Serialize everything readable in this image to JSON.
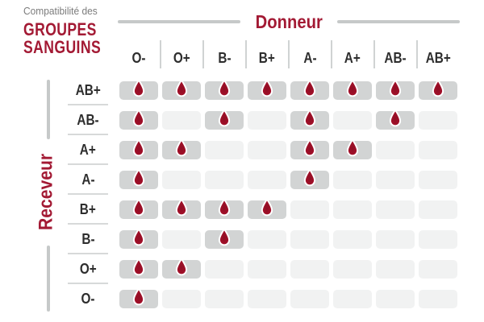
{
  "header": {
    "subtitle": "Compatibilité des",
    "title_line1": "GROUPES",
    "title_line2": "SANGUINS",
    "donor_label": "Donneur",
    "receiver_label": "Receveur"
  },
  "chart_data": {
    "type": "heatmap",
    "title": "Compatibilité des GROUPES SANGUINS",
    "x_axis_label": "Donneur",
    "y_axis_label": "Receveur",
    "donor_columns": [
      "O-",
      "O+",
      "B-",
      "B+",
      "A-",
      "A+",
      "AB-",
      "AB+"
    ],
    "receiver_rows": [
      "AB+",
      "AB-",
      "A+",
      "A-",
      "B+",
      "B-",
      "O+",
      "O-"
    ],
    "matrix": [
      [
        1,
        1,
        1,
        1,
        1,
        1,
        1,
        1
      ],
      [
        1,
        0,
        1,
        0,
        1,
        0,
        1,
        0
      ],
      [
        1,
        1,
        0,
        0,
        1,
        1,
        0,
        0
      ],
      [
        1,
        0,
        0,
        0,
        1,
        0,
        0,
        0
      ],
      [
        1,
        1,
        1,
        1,
        0,
        0,
        0,
        0
      ],
      [
        1,
        0,
        1,
        0,
        0,
        0,
        0,
        0
      ],
      [
        1,
        1,
        0,
        0,
        0,
        0,
        0,
        0
      ],
      [
        1,
        0,
        0,
        0,
        0,
        0,
        0,
        0
      ]
    ],
    "cell_marker": "blood-drop",
    "grid": "rounded-cells",
    "legend_position": "none"
  },
  "icons": {
    "compatible_marker": "blood-drop-icon"
  },
  "colors": {
    "accent_red": "#a31a34",
    "drop_red_edge": "#b81434",
    "drop_red_core": "#8f0e24",
    "active_cell": "#d2d4d4",
    "empty_cell": "#f1f2f2",
    "divider_gray": "#d0d3d3",
    "axis_line_gray": "#c6c9c9",
    "label_dark": "#2d2d2d",
    "subtitle_gray": "#7b7b7b"
  }
}
